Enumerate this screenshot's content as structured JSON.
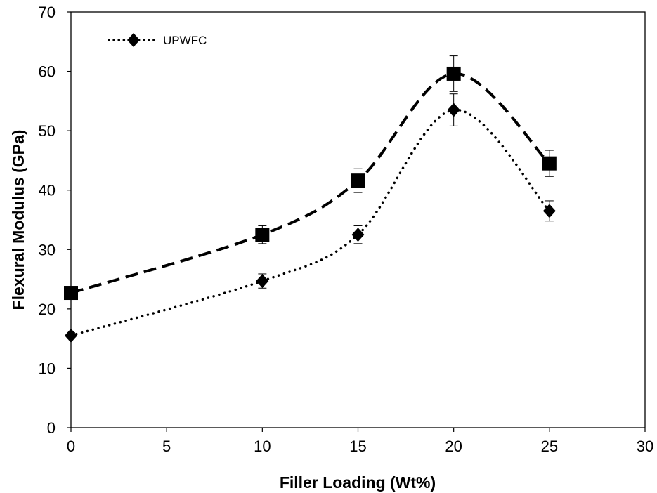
{
  "chart_data": {
    "type": "scatter",
    "title": "",
    "xlabel": "Filler Loading (Wt%)",
    "ylabel": "Flexural Modulus (GPa)",
    "xlim": [
      0,
      30
    ],
    "ylim": [
      0,
      70
    ],
    "x_ticks": [
      "0",
      "5",
      "10",
      "15",
      "20",
      "25",
      "30"
    ],
    "y_ticks": [
      "0",
      "10",
      "20",
      "30",
      "40",
      "50",
      "60",
      "70"
    ],
    "grid": false,
    "legend_position": "top-left",
    "series": [
      {
        "name": "UPWFC",
        "marker": "diamond",
        "line": "dotted",
        "smooth": true,
        "x": [
          0,
          10,
          15,
          20,
          25
        ],
        "y": [
          15.5,
          24.7,
          32.5,
          53.5,
          36.5
        ],
        "error": [
          0.5,
          1.2,
          1.5,
          2.7,
          1.7
        ]
      },
      {
        "marker": "square",
        "line": "dashed",
        "smooth": true,
        "x": [
          0,
          10,
          15,
          20,
          25
        ],
        "y": [
          22.7,
          32.5,
          41.6,
          59.6,
          44.5
        ],
        "error": [
          0.5,
          1.5,
          2.0,
          3.0,
          2.2
        ]
      }
    ]
  },
  "colors": {
    "series": "#000000",
    "axis": "#000000",
    "background": "#ffffff"
  }
}
